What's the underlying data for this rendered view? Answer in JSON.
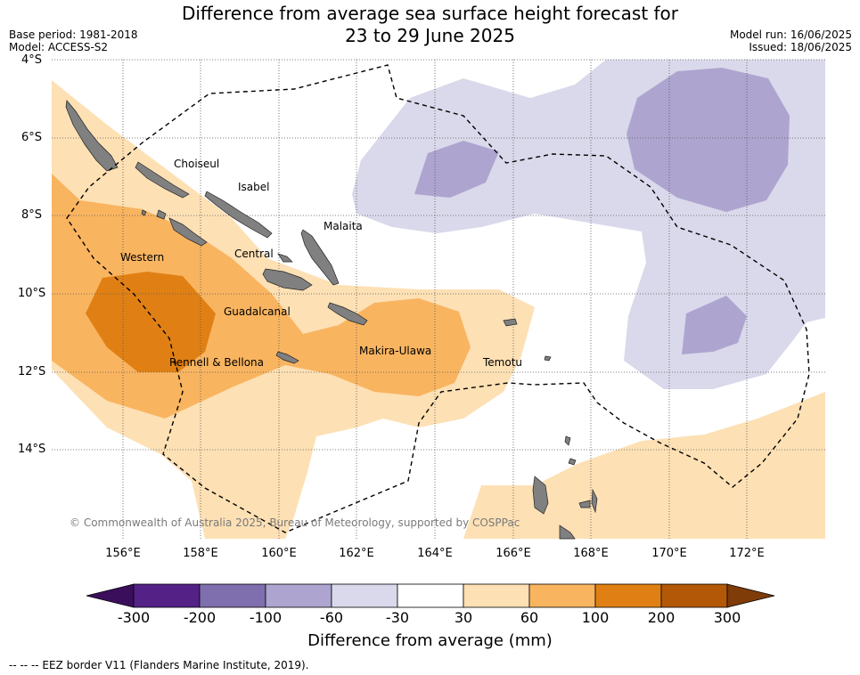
{
  "title_line1": "Difference from average sea surface height forecast for",
  "title_line2": "23 to 29 June 2025",
  "base_period": "Base period: 1981-2018",
  "model": "Model: ACCESS-S2",
  "model_run": "Model run: 16/06/2025",
  "issued": "Issued: 18/06/2025",
  "lat_labels": [
    "4°S",
    "6°S",
    "8°S",
    "10°S",
    "12°S",
    "14°S"
  ],
  "lon_labels": [
    "156°E",
    "158°E",
    "160°E",
    "162°E",
    "164°E",
    "166°E",
    "168°E",
    "170°E",
    "172°E"
  ],
  "places": {
    "choiseul": "Choiseul",
    "isabel": "Isabel",
    "malaita": "Malaita",
    "western": "Western",
    "central": "Central",
    "guadalcanal": "Guadalcanal",
    "makira_ulawa": "Makira-Ulawa",
    "rennell_bellona": "Rennell & Bellona",
    "temotu": "Temotu"
  },
  "copyright": "© Commonwealth of Australia 2025, Bureau of Meteorology, supported by COSPPac",
  "colorbar": {
    "labels": [
      "-300",
      "-200",
      "-100",
      "-60",
      "-30",
      "30",
      "60",
      "100",
      "200",
      "300"
    ],
    "colors": [
      "#542287",
      "#7f6fae",
      "#ada5cf",
      "#d9d9eb",
      "#ffffff",
      "#fde0b4",
      "#f9b460",
      "#e08014",
      "#b35806"
    ],
    "extend_low_color": "#3b0e5c",
    "extend_high_color": "#7f3b08",
    "title": "Difference from average (mm)"
  },
  "eez_note": "--  --  -- EEZ border V11 (Flanders Marine Institute, 2019).",
  "colors": {
    "land": "#808080",
    "eez_line": "#000000",
    "grid": "#555555"
  }
}
